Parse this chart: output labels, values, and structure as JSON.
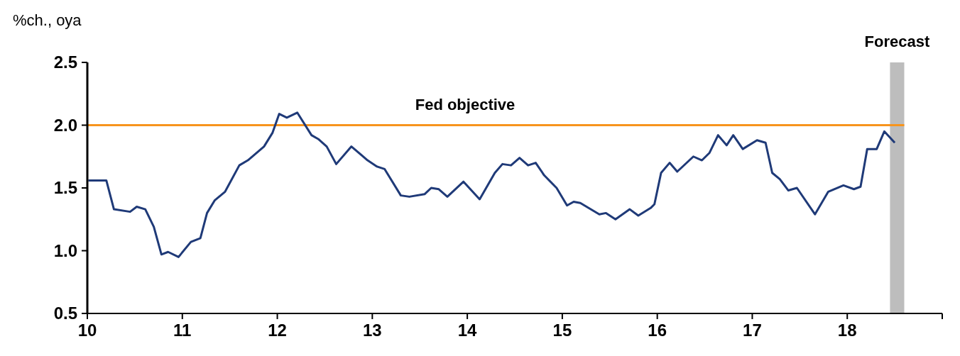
{
  "chart_data": {
    "type": "line",
    "ylabel": "%ch., oya",
    "x": [
      10.01,
      10.2,
      10.28,
      10.45,
      10.52,
      10.61,
      10.7,
      10.78,
      10.85,
      10.96,
      11.09,
      11.19,
      11.26,
      11.34,
      11.45,
      11.6,
      11.69,
      11.86,
      11.95,
      12.02,
      12.1,
      12.21,
      12.36,
      12.43,
      12.52,
      12.62,
      12.78,
      12.95,
      13.05,
      13.13,
      13.3,
      13.39,
      13.55,
      13.62,
      13.7,
      13.79,
      13.96,
      14.13,
      14.29,
      14.37,
      14.46,
      14.55,
      14.64,
      14.72,
      14.81,
      14.94,
      15.05,
      15.12,
      15.19,
      15.39,
      15.46,
      15.56,
      15.71,
      15.8,
      15.93,
      15.97,
      16.04,
      16.13,
      16.21,
      16.38,
      16.47,
      16.55,
      16.64,
      16.73,
      16.8,
      16.9,
      17.05,
      17.14,
      17.21,
      17.29,
      17.38,
      17.47,
      17.66,
      17.8,
      17.96,
      18.07,
      18.14,
      18.21,
      18.31,
      18.39,
      18.5
    ],
    "series": [
      {
        "color": "#1f3a78",
        "values": [
          1.56,
          1.56,
          1.33,
          1.31,
          1.35,
          1.33,
          1.19,
          0.97,
          0.99,
          0.95,
          1.07,
          1.1,
          1.3,
          1.4,
          1.47,
          1.68,
          1.72,
          1.83,
          1.94,
          2.09,
          2.06,
          2.1,
          1.92,
          1.89,
          1.83,
          1.69,
          1.83,
          1.72,
          1.67,
          1.65,
          1.44,
          1.43,
          1.45,
          1.5,
          1.49,
          1.43,
          1.55,
          1.41,
          1.62,
          1.69,
          1.68,
          1.74,
          1.68,
          1.7,
          1.6,
          1.5,
          1.36,
          1.39,
          1.38,
          1.29,
          1.3,
          1.25,
          1.33,
          1.28,
          1.34,
          1.37,
          1.62,
          1.7,
          1.63,
          1.75,
          1.72,
          1.78,
          1.92,
          1.84,
          1.92,
          1.81,
          1.88,
          1.86,
          1.62,
          1.57,
          1.48,
          1.5,
          1.29,
          1.47,
          1.52,
          1.49,
          1.51,
          1.81,
          1.81,
          1.95,
          1.86
        ]
      }
    ],
    "xlim": [
      10,
      19
    ],
    "xticks": [
      10,
      11,
      12,
      13,
      14,
      15,
      16,
      17,
      18,
      {
        "value": 19,
        "label": null
      }
    ],
    "ylim": [
      0.5,
      2.5
    ],
    "yticks": [
      {
        "value": 0.5,
        "label": "0.5"
      },
      {
        "value": 1,
        "label": "1.0"
      },
      {
        "value": 1.5,
        "label": "1.5"
      },
      {
        "value": 2,
        "label": "2.0"
      },
      {
        "value": 2.5,
        "label": "2.5"
      }
    ],
    "ref_lines": [
      {
        "axis": "y",
        "value": 2,
        "label": "Fed objective",
        "color": "#f7941d"
      }
    ],
    "bands": [
      {
        "axis": "x",
        "from": 18.45,
        "to": 18.6,
        "label": "Forecast",
        "color": "#bdbdbd"
      }
    ],
    "grid": false,
    "marker": "none",
    "line_style": "solid"
  }
}
